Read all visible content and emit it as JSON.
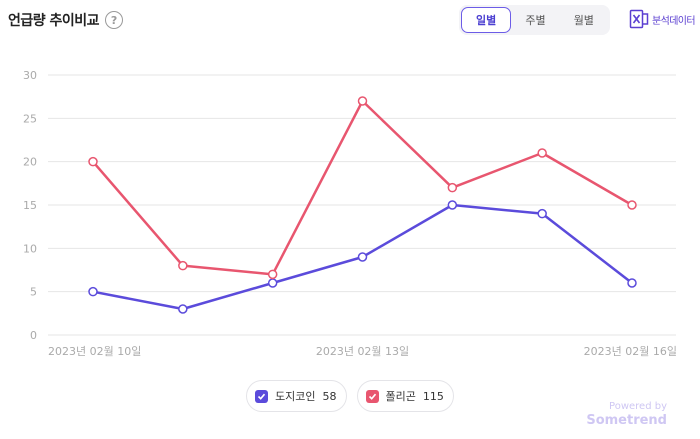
{
  "header": {
    "title": "언급량 추이비교",
    "help_icon": "?",
    "tabs": [
      {
        "label": "일별",
        "active": true
      },
      {
        "label": "주별",
        "active": false
      },
      {
        "label": "월별",
        "active": false
      }
    ],
    "export_label": "분석데이터",
    "export_icon": "excel-export-icon"
  },
  "chart_data": {
    "type": "line",
    "x": [
      "2023년 02월 10일",
      "2023년 02월 11일",
      "2023년 02월 12일",
      "2023년 02월 13일",
      "2023년 02월 14일",
      "2023년 02월 15일",
      "2023년 02월 16일"
    ],
    "x_tick_labels": [
      "2023년 02월 10일",
      "2023년 02월 13일",
      "2023년 02월 16일"
    ],
    "ylim": [
      0,
      30
    ],
    "yticks": [
      0,
      5,
      10,
      15,
      20,
      25,
      30
    ],
    "grid": true,
    "legend_placement": "bottom",
    "series": [
      {
        "name": "도지코인",
        "total": 58,
        "color": "#5b4bdb",
        "values": [
          5,
          3,
          6,
          9,
          15,
          14,
          6
        ]
      },
      {
        "name": "폴리곤",
        "total": 115,
        "color": "#e8566f",
        "values": [
          20,
          8,
          7,
          27,
          17,
          21,
          15
        ]
      }
    ]
  },
  "footer": {
    "powered_by": "Powered by",
    "brand": "Sometrend"
  }
}
